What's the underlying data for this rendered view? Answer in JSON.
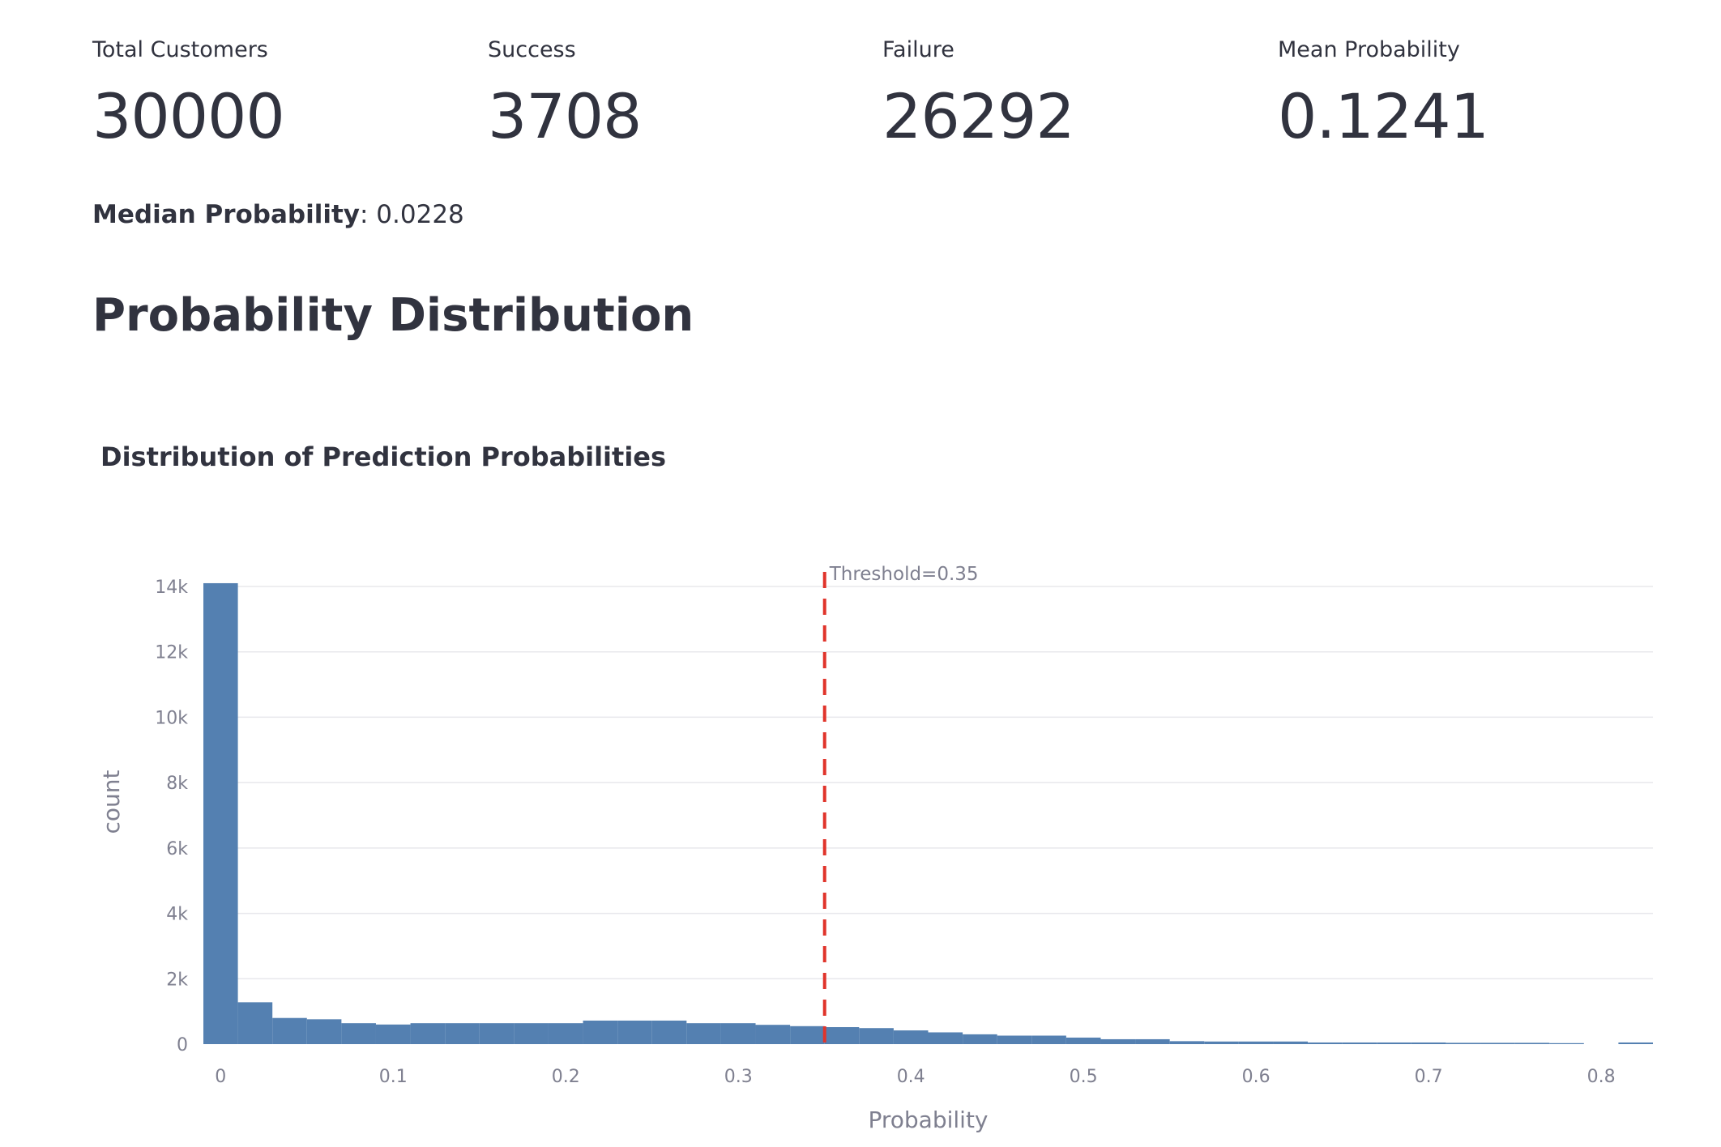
{
  "metrics": [
    {
      "label": "Total Customers",
      "value": "30000"
    },
    {
      "label": "Success",
      "value": "3708"
    },
    {
      "label": "Failure",
      "value": "26292"
    },
    {
      "label": "Mean Probability",
      "value": "0.1241"
    }
  ],
  "median": {
    "label": "Median Probability",
    "value": "0.0228"
  },
  "section_title": "Probability Distribution",
  "colors": {
    "bar": "#5480b1",
    "threshold": "#e0342b",
    "grid": "#e8e8ec",
    "axis_text": "#7f8090"
  },
  "chart_data": {
    "type": "bar",
    "title": "Distribution of Prediction Probabilities",
    "xlabel": "Probability",
    "ylabel": "count",
    "xlim": [
      -0.01,
      0.83
    ],
    "ylim": [
      0,
      14000
    ],
    "bin_width": 0.02,
    "x_ticks": [
      0,
      0.1,
      0.2,
      0.3,
      0.4,
      0.5,
      0.6,
      0.7,
      0.8
    ],
    "x_tick_labels": [
      "0",
      "0.1",
      "0.2",
      "0.3",
      "0.4",
      "0.5",
      "0.6",
      "0.7",
      "0.8"
    ],
    "y_ticks": [
      0,
      2000,
      4000,
      6000,
      8000,
      10000,
      12000,
      14000
    ],
    "y_tick_labels": [
      "0",
      "2k",
      "4k",
      "6k",
      "8k",
      "10k",
      "12k",
      "14k"
    ],
    "bin_starts": [
      -0.01,
      0.01,
      0.03,
      0.05,
      0.07,
      0.09,
      0.11,
      0.13,
      0.15,
      0.17,
      0.19,
      0.21,
      0.23,
      0.25,
      0.27,
      0.29,
      0.31,
      0.33,
      0.35,
      0.37,
      0.39,
      0.41,
      0.43,
      0.45,
      0.47,
      0.49,
      0.51,
      0.53,
      0.55,
      0.57,
      0.59,
      0.61,
      0.63,
      0.65,
      0.67,
      0.69,
      0.71,
      0.73,
      0.75,
      0.77,
      0.79,
      0.81
    ],
    "values": [
      14100,
      1280,
      800,
      760,
      640,
      600,
      640,
      640,
      640,
      640,
      640,
      720,
      720,
      720,
      640,
      640,
      590,
      550,
      520,
      490,
      420,
      360,
      300,
      260,
      260,
      200,
      150,
      150,
      90,
      80,
      80,
      80,
      50,
      50,
      50,
      50,
      40,
      40,
      40,
      30,
      0,
      50
    ],
    "threshold": {
      "x": 0.35,
      "label": "Threshold=0.35"
    }
  }
}
